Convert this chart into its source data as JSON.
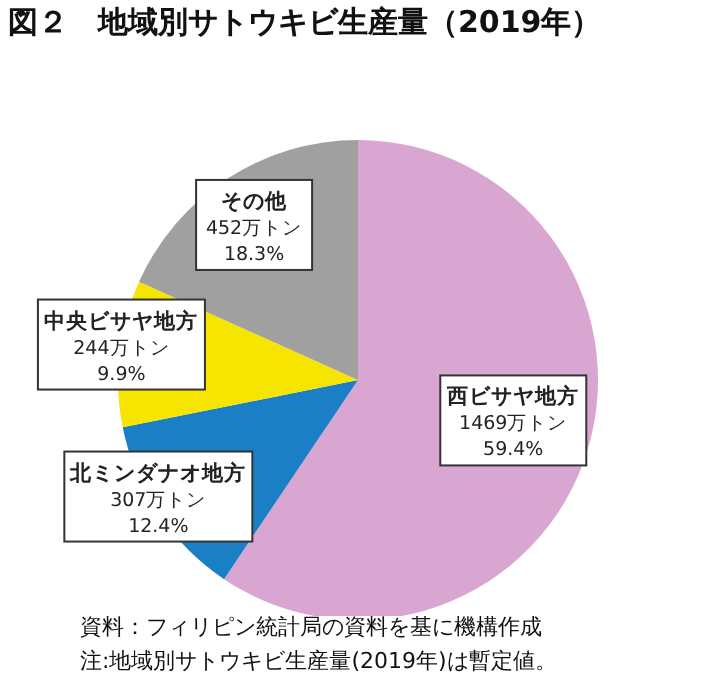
{
  "chart_data": {
    "type": "pie",
    "title": "図２　地域別サトウキビ生産量（2019年）",
    "categories": [
      "西ビサヤ地方",
      "北ミンダナオ地方",
      "中央ビサヤ地方",
      "その他"
    ],
    "values": [
      1469,
      307,
      244,
      452
    ],
    "value_labels": [
      "1469万トン\n59.4%",
      "307万トン\n12.4%",
      "244万トン\n9.9%",
      "452万トン\n18.3%"
    ],
    "colors": [
      "#d8a6d0",
      "#1a7fc4",
      "#f6e500",
      "#a0a0a0"
    ],
    "annotations": [
      "資料：フィリピン統計局の資料を基に機構作成",
      "注:地域別サトウキビ生産量(2019年)は暫定値。"
    ]
  }
}
